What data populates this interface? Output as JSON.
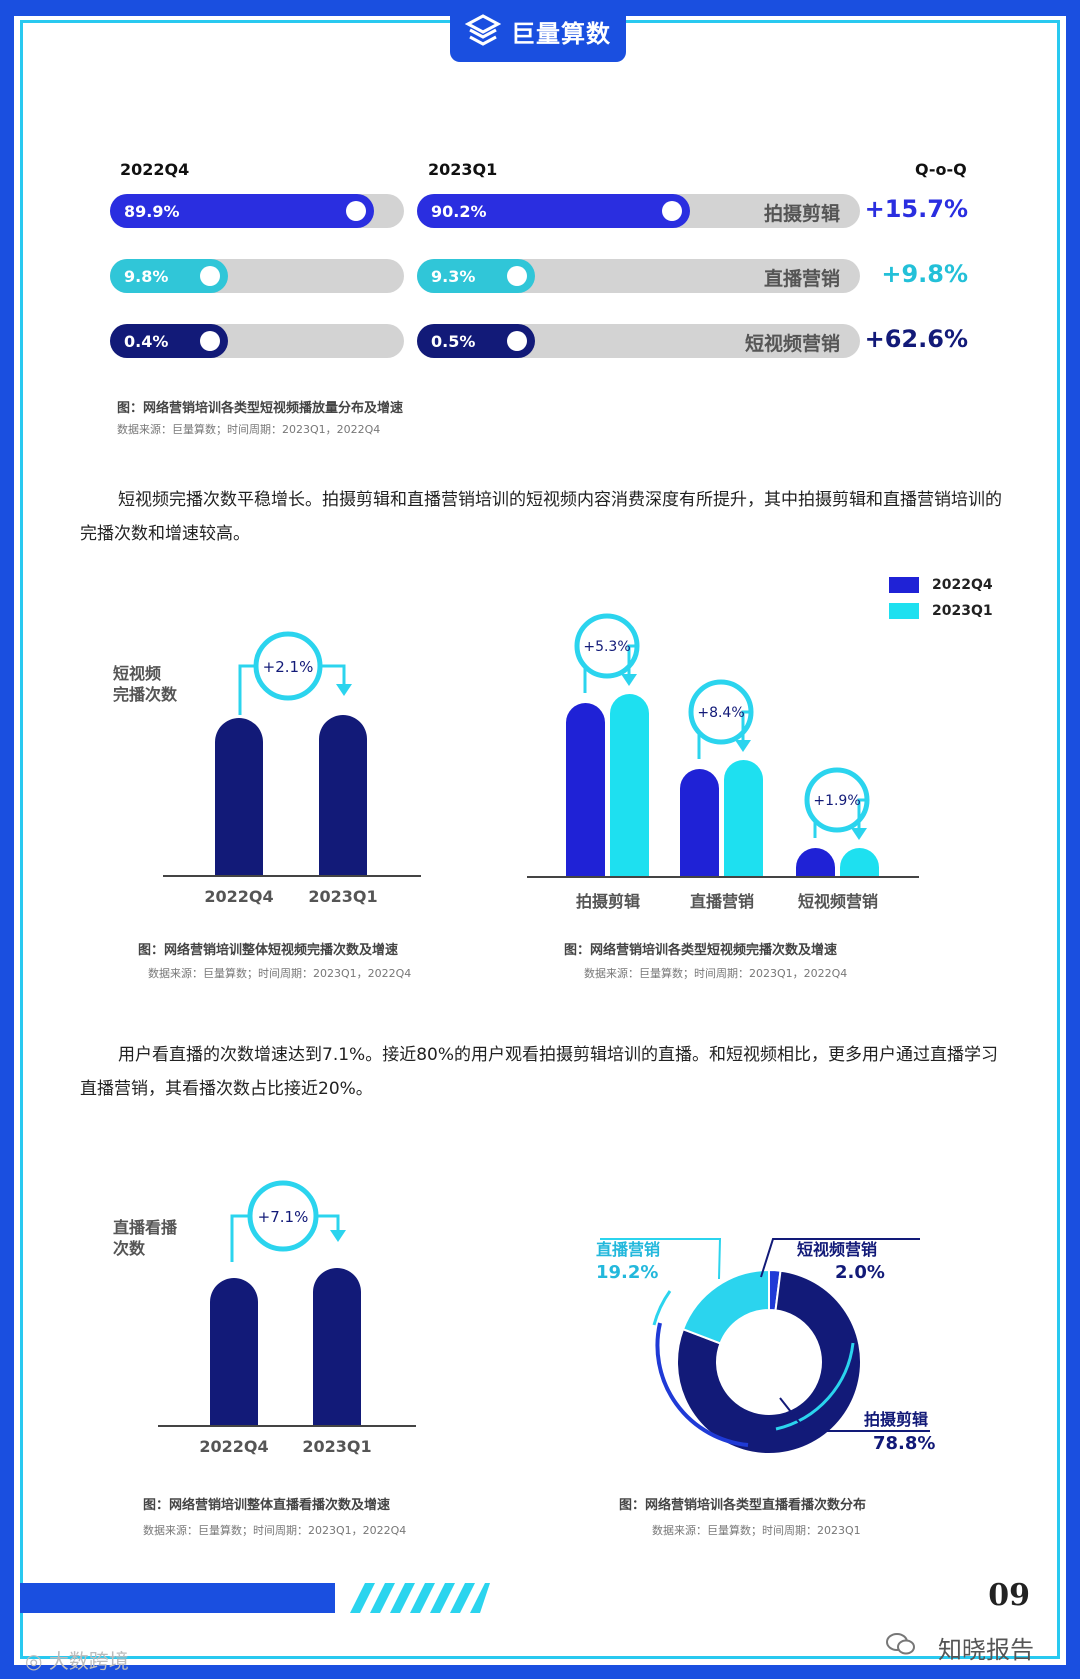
{
  "brand": {
    "name": "巨量算数"
  },
  "ranking": {
    "col1": "2022Q4",
    "col2": "2023Q1",
    "col3": "Q-o-Q",
    "rows": [
      {
        "category": "拍摄剪辑",
        "v1": "89.9%",
        "v2": "90.2%",
        "qoq": "+15.7%",
        "f1": 0.899,
        "f2": 0.902,
        "color": "#2a2ee0",
        "qoq_color": "#2a2ee0"
      },
      {
        "category": "直播营销",
        "v1": "9.8%",
        "v2": "9.3%",
        "qoq": "+9.8%",
        "f1": 0.098,
        "f2": 0.093,
        "color": "#30c6d8",
        "qoq_color": "#23c0d8"
      },
      {
        "category": "短视频营销",
        "v1": "0.4%",
        "v2": "0.5%",
        "qoq": "+62.6%",
        "f1": 0.004,
        "f2": 0.005,
        "color": "#121a78",
        "qoq_color": "#121a78"
      }
    ],
    "caption": "图：网络营销培训各类型短视频播放量分布及增速",
    "source": "数据来源：巨量算数；时间周期：2023Q1，2022Q4"
  },
  "para1": "短视频完播次数平稳增长。拍摄剪辑和直播营销培训的短视频内容消费深度有所提升，其中拍摄剪辑和直播营销培训的完播次数和增速较高。",
  "chart1": {
    "ylabel_lines": [
      "短视频",
      "完播次数"
    ],
    "growth": "+2.1%",
    "caption": "图：网络营销培训整体短视频完播次数及增速",
    "source": "数据来源：巨量算数；时间周期：2023Q1，2022Q4"
  },
  "chart2": {
    "legend": [
      "2022Q4",
      "2023Q1"
    ],
    "caption": "图：网络营销培训各类型短视频完播次数及增速",
    "source": "数据来源：巨量算数；时间周期：2023Q1，2022Q4"
  },
  "para2": "用户看直播的次数增速达到7.1%。接近80%的用户观看拍摄剪辑培训的直播。和短视频相比，更多用户通过直播学习直播营销，其看播次数占比接近20%。",
  "chart3": {
    "ylabel_lines": [
      "直播看播",
      "次数"
    ],
    "growth": "+7.1%",
    "caption": "图：网络营销培训整体直播看播次数及增速",
    "source": "数据来源：巨量算数；时间周期：2023Q1，2022Q4"
  },
  "chart4": {
    "labels": [
      {
        "name": "直播营销",
        "pct": "19.2%"
      },
      {
        "name": "短视频营销",
        "pct": "2.0%"
      },
      {
        "name": "拍摄剪辑",
        "pct": "78.8%"
      }
    ],
    "caption": "图：网络营销培训各类型直播看播次数分布",
    "source": "数据来源：巨量算数；时间周期：2023Q1"
  },
  "chart_data": [
    {
      "type": "bar",
      "title": "",
      "categories": [
        "2022Q4",
        "2023Q1"
      ],
      "values": [
        100,
        102.1
      ],
      "annotations": [
        "+2.1%"
      ],
      "ylabel": "短视频完播次数"
    },
    {
      "type": "bar",
      "title": "",
      "categories": [
        "拍摄剪辑",
        "直播营销",
        "短视频营销"
      ],
      "series": [
        {
          "name": "2022Q4",
          "values": [
            100,
            62,
            16
          ]
        },
        {
          "name": "2023Q1",
          "values": [
            105.3,
            67.2,
            16.3
          ]
        }
      ],
      "annotations": [
        "+5.3%",
        "+8.4%",
        "+1.9%"
      ],
      "legend": "top-right",
      "colors": {
        "2022Q4": "#1f22d6",
        "2023Q1": "#1ee0f0"
      }
    },
    {
      "type": "bar",
      "title": "",
      "categories": [
        "2022Q4",
        "2023Q1"
      ],
      "values": [
        100,
        107.1
      ],
      "annotations": [
        "+7.1%"
      ],
      "ylabel": "直播看播次数"
    },
    {
      "type": "pie",
      "title": "",
      "categories": [
        "拍摄剪辑",
        "直播营销",
        "短视频营销"
      ],
      "values": [
        78.8,
        19.2,
        2.0
      ],
      "colors": {
        "拍摄剪辑": "#121a78",
        "直播营销": "#2bd4ee",
        "短视频营销": "#1f3ad6"
      }
    }
  ],
  "footer": {
    "page": "09",
    "watermark": "知晓报告",
    "watermark2": "大数跨境"
  }
}
